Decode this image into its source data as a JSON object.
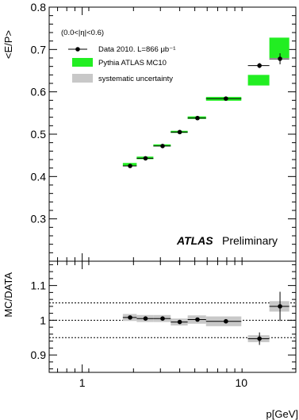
{
  "chart_data": [
    {
      "type": "scatter",
      "panel": "main",
      "ylabel": "<E/P>",
      "xlabel": "p[GeV]",
      "xscale": "log",
      "xlim": [
        0.62,
        22
      ],
      "ylim": [
        0.2,
        0.8
      ],
      "yticks": [
        "0.3",
        "0.4",
        "0.5",
        "0.6",
        "0.7",
        "0.8"
      ],
      "eta_label": "(0.0<|η|<0.6)",
      "atlas_label": "ATLAS",
      "atlas_sub": "Preliminary",
      "legend_position": "top-left",
      "series": [
        {
          "name": "Data 2010. L=866 μb⁻¹",
          "role": "data",
          "x": [
            2.0,
            2.5,
            3.2,
            4.1,
            5.3,
            8.0,
            13.0,
            17.5
          ],
          "xlow": [
            1.8,
            2.2,
            2.8,
            3.6,
            4.6,
            6.0,
            11.0,
            15.0
          ],
          "xhigh": [
            2.2,
            2.8,
            3.6,
            4.6,
            6.0,
            10.0,
            15.0,
            20.0
          ],
          "y": [
            0.425,
            0.443,
            0.472,
            0.505,
            0.538,
            0.584,
            0.662,
            0.678
          ],
          "yerr": [
            0.002,
            0.002,
            0.002,
            0.002,
            0.002,
            0.003,
            0.006,
            0.013
          ]
        },
        {
          "name": "Pythia ATLAS MC10",
          "role": "mc",
          "color": "#22ee22",
          "xlow": [
            1.8,
            2.2,
            2.8,
            3.6,
            4.6,
            6.0,
            11.0,
            15.0
          ],
          "xhigh": [
            2.2,
            2.8,
            3.6,
            4.6,
            6.0,
            10.0,
            15.0,
            20.0
          ],
          "ylow": [
            0.425,
            0.441,
            0.471,
            0.503,
            0.536,
            0.579,
            0.615,
            0.68
          ],
          "yhigh": [
            0.432,
            0.447,
            0.476,
            0.508,
            0.542,
            0.588,
            0.64,
            0.728
          ]
        },
        {
          "name": "systematic uncertainty",
          "role": "syst",
          "color": "#c8c8c8"
        }
      ]
    },
    {
      "type": "scatter",
      "panel": "ratio",
      "ylabel": "MC/DATA",
      "xlabel": "p[GeV]",
      "xscale": "log",
      "xlim": [
        0.62,
        22
      ],
      "ylim": [
        0.85,
        1.17
      ],
      "yticks": [
        "0.9",
        "1",
        "1.1"
      ],
      "xticks": [
        "1",
        "10"
      ],
      "reference_lines": [
        0.95,
        1.0,
        1.05
      ],
      "series": [
        {
          "name": "ratio",
          "x": [
            2.0,
            2.5,
            3.2,
            4.1,
            5.3,
            8.0,
            13.0,
            17.5
          ],
          "xlow": [
            1.8,
            2.2,
            2.8,
            3.6,
            4.6,
            6.0,
            11.0,
            15.0
          ],
          "xhigh": [
            2.2,
            2.8,
            3.6,
            4.6,
            6.0,
            10.0,
            15.0,
            20.0
          ],
          "y": [
            1.008,
            1.005,
            1.005,
            0.995,
            1.002,
            0.997,
            0.947,
            1.04
          ],
          "yerr": [
            0.004,
            0.004,
            0.004,
            0.004,
            0.005,
            0.006,
            0.018,
            0.042
          ],
          "syst": [
            0.01,
            0.01,
            0.01,
            0.01,
            0.012,
            0.014,
            0.01,
            0.015
          ]
        }
      ]
    }
  ]
}
